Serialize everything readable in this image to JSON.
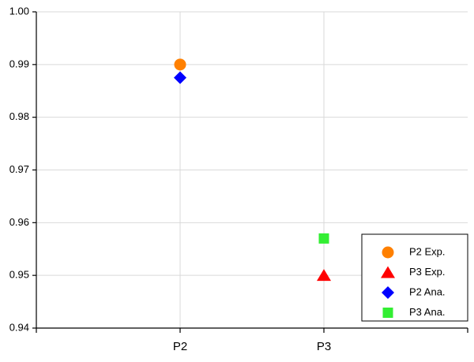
{
  "chart_data": {
    "type": "scatter",
    "categories": [
      "P2",
      "P3"
    ],
    "series": [
      {
        "name": "P2 Exp.",
        "color": "#ff8000",
        "marker": "circle",
        "values": [
          0.99,
          null
        ]
      },
      {
        "name": "P3 Exp.",
        "color": "#ff0000",
        "marker": "triangle",
        "values": [
          null,
          0.95
        ]
      },
      {
        "name": "P2 Ana.",
        "color": "#0000ff",
        "marker": "diamond",
        "values": [
          0.9875,
          null
        ]
      },
      {
        "name": "P3 Ana.",
        "color": "#33ee33",
        "marker": "square",
        "values": [
          null,
          0.957
        ]
      }
    ],
    "ylim": [
      0.94,
      1.0
    ],
    "yticks": [
      0.94,
      0.95,
      0.96,
      0.97,
      0.98,
      0.99,
      {
        "value": 1.0,
        "label": "1.00"
      }
    ],
    "grid": true,
    "legend": "lower right"
  }
}
